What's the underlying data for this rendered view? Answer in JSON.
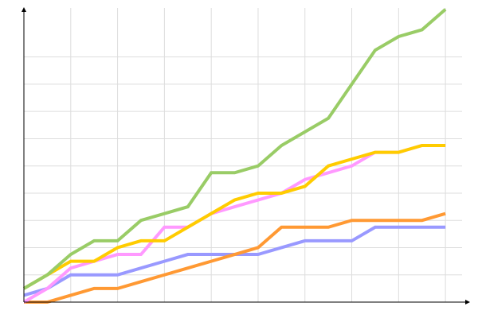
{
  "chart_data": {
    "type": "line",
    "x": [
      0,
      1,
      2,
      3,
      4,
      5,
      6,
      7,
      8,
      9,
      10,
      11,
      12,
      13,
      14,
      15,
      16,
      17,
      18
    ],
    "xlim": [
      0,
      19.05
    ],
    "xticks": [
      0,
      2,
      4,
      6,
      8,
      10,
      12,
      14,
      16,
      18
    ],
    "ylim": [
      0,
      10.8
    ],
    "yticks": [
      0,
      1,
      2,
      3,
      4,
      5,
      6,
      7,
      8,
      9
    ],
    "grid": true,
    "series": [
      {
        "color": "#9999ff",
        "values": [
          0.25,
          0.5,
          1,
          1,
          1,
          1.25,
          1.5,
          1.75,
          1.75,
          1.75,
          1.75,
          2,
          2.25,
          2.25,
          2.25,
          2.75,
          2.75,
          2.75,
          2.75
        ]
      },
      {
        "color": "#ff9933",
        "values": [
          0,
          0,
          0.25,
          0.5,
          0.5,
          0.75,
          1,
          1.25,
          1.5,
          1.75,
          2,
          2.75,
          2.75,
          2.75,
          3,
          3,
          3,
          3,
          3.25
        ]
      },
      {
        "color": "#ff99ff",
        "values": [
          0,
          0.5,
          1.25,
          1.5,
          1.75,
          1.75,
          2.75,
          2.75,
          3.25,
          3.5,
          3.75,
          4,
          4.5,
          4.75,
          5,
          5.5,
          5.5,
          5.75,
          5.75
        ]
      },
      {
        "color": "#ffcc00",
        "values": [
          0.5,
          1,
          1.5,
          1.5,
          2,
          2.25,
          2.25,
          2.75,
          3.25,
          3.75,
          4,
          4,
          4.25,
          5,
          5.25,
          5.5,
          5.5,
          5.75,
          5.75
        ]
      },
      {
        "color": "#99cc66",
        "values": [
          0.5,
          1,
          1.75,
          2.25,
          2.25,
          3,
          3.25,
          3.5,
          4.75,
          4.75,
          5,
          5.75,
          6.25,
          6.75,
          8,
          9.25,
          9.75,
          10,
          10.75
        ]
      }
    ]
  }
}
